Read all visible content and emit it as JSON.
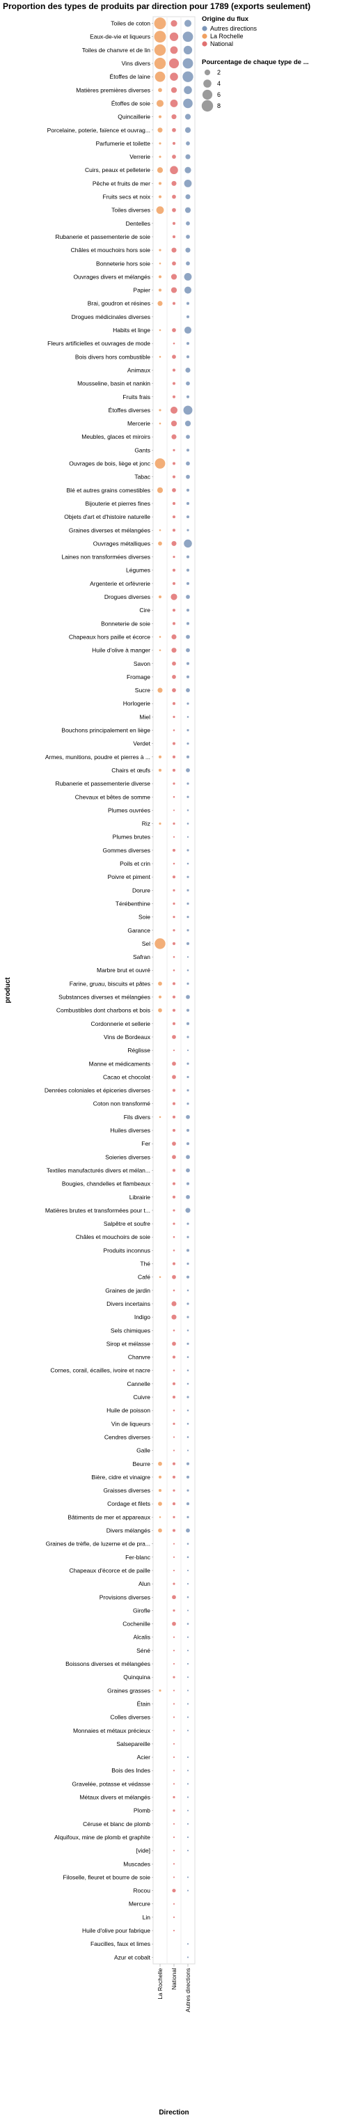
{
  "chart_data": {
    "type": "scatter",
    "title": "Proportion des types de produits par direction pour 1789 (exports seulement)",
    "xlabel": "Direction",
    "ylabel": "product",
    "directions": [
      "La Rochelle",
      "National",
      "Autres directions"
    ],
    "legend_color_title": "Origine du flux",
    "legend_color_entries": [
      {
        "label": "Autres directions",
        "color": "#7b95b8"
      },
      {
        "label": "La Rochelle",
        "color": "#f0a060"
      },
      {
        "label": "National",
        "color": "#e07070"
      }
    ],
    "legend_size_title": "Pourcentage de chaque type de ...",
    "legend_size_values": [
      2,
      4,
      6,
      8
    ],
    "products": [
      {
        "name": "Toiles de coton",
        "values": [
          8.5,
          2.5,
          3.0
        ]
      },
      {
        "name": "Eaux-de-vie et liqueurs",
        "values": [
          8.5,
          4.5,
          6.5
        ]
      },
      {
        "name": "Toiles de chanvre et de lin",
        "values": [
          8.0,
          3.5,
          4.5
        ]
      },
      {
        "name": "Vins divers",
        "values": [
          8.0,
          6.0,
          6.5
        ]
      },
      {
        "name": "Étoffes de laine",
        "values": [
          6.5,
          4.0,
          7.0
        ]
      },
      {
        "name": "Matières premières diverses",
        "values": [
          1.0,
          2.0,
          4.0
        ]
      },
      {
        "name": "Étoffes de soie",
        "values": [
          3.0,
          3.5,
          5.5
        ]
      },
      {
        "name": "Quincaillerie",
        "values": [
          0.5,
          1.5,
          2.0
        ]
      },
      {
        "name": "Porcelaine, poterie, faïence et ouvrag...",
        "values": [
          1.5,
          1.0,
          2.0
        ]
      },
      {
        "name": "Parfumerie et toilette",
        "values": [
          0.3,
          0.5,
          1.0
        ]
      },
      {
        "name": "Verrerie",
        "values": [
          0.3,
          1.0,
          1.5
        ]
      },
      {
        "name": "Cuirs, peaux et pelleterie",
        "values": [
          2.0,
          4.0,
          2.5
        ]
      },
      {
        "name": "Pêche et fruits de mer",
        "values": [
          0.5,
          1.5,
          3.5
        ]
      },
      {
        "name": "Fruits secs et noix",
        "values": [
          0.5,
          1.0,
          1.5
        ]
      },
      {
        "name": "Toiles diverses",
        "values": [
          3.5,
          1.0,
          2.0
        ]
      },
      {
        "name": "Dentelles",
        "values": [
          0.0,
          0.5,
          1.0
        ]
      },
      {
        "name": "Rubanerie et passementerie de soie",
        "values": [
          0.0,
          0.5,
          1.0
        ]
      },
      {
        "name": "Châles et mouchoirs hors soie",
        "values": [
          0.3,
          1.5,
          1.5
        ]
      },
      {
        "name": "Bonneterie hors soie",
        "values": [
          0.2,
          1.0,
          1.0
        ]
      },
      {
        "name": "Ouvrages divers et mélangés",
        "values": [
          0.5,
          2.0,
          3.5
        ]
      },
      {
        "name": "Papier",
        "values": [
          0.5,
          2.0,
          3.0
        ]
      },
      {
        "name": "Brai, goudron et résines",
        "values": [
          1.5,
          0.5,
          0.5
        ]
      },
      {
        "name": "Drogues médicinales diverses",
        "values": [
          0.0,
          0.0,
          0.5
        ]
      },
      {
        "name": "Habits et linge",
        "values": [
          0.2,
          1.0,
          3.0
        ]
      },
      {
        "name": "Fleurs artificielles et ouvrages de mode",
        "values": [
          0.0,
          0.2,
          0.5
        ]
      },
      {
        "name": "Bois divers hors combustible",
        "values": [
          0.2,
          1.0,
          0.5
        ]
      },
      {
        "name": "Animaux",
        "values": [
          0.0,
          0.5,
          1.5
        ]
      },
      {
        "name": "Mousseline, basin et nankin",
        "values": [
          0.0,
          0.5,
          1.0
        ]
      },
      {
        "name": "Fruits frais",
        "values": [
          0.0,
          0.5,
          0.5
        ]
      },
      {
        "name": "Étoffes diverses",
        "values": [
          0.3,
          3.0,
          5.0
        ]
      },
      {
        "name": "Mercerie",
        "values": [
          0.2,
          2.0,
          2.0
        ]
      },
      {
        "name": "Meubles, glaces et miroirs",
        "values": [
          0.0,
          1.5,
          1.0
        ]
      },
      {
        "name": "Gants",
        "values": [
          0.0,
          0.3,
          0.5
        ]
      },
      {
        "name": "Ouvrages de bois, liège et jonc",
        "values": [
          6.5,
          0.5,
          1.0
        ]
      },
      {
        "name": "Tabac",
        "values": [
          0.0,
          0.5,
          1.0
        ]
      },
      {
        "name": "Blé et autres grains comestibles",
        "values": [
          2.0,
          1.0,
          0.5
        ]
      },
      {
        "name": "Bijouterie et pierres fines",
        "values": [
          0.0,
          0.5,
          0.5
        ]
      },
      {
        "name": "Objets d'art et d'histoire naturelle",
        "values": [
          0.0,
          0.5,
          0.5
        ]
      },
      {
        "name": "Graines diverses et mélangées",
        "values": [
          0.2,
          0.5,
          0.3
        ]
      },
      {
        "name": "Ouvrages métalliques",
        "values": [
          1.0,
          1.5,
          4.0
        ]
      },
      {
        "name": "Laines non transformées diverses",
        "values": [
          0.0,
          0.3,
          0.5
        ]
      },
      {
        "name": "Légumes",
        "values": [
          0.0,
          0.5,
          0.5
        ]
      },
      {
        "name": "Argenterie et orfèvrerie",
        "values": [
          0.0,
          0.5,
          0.5
        ]
      },
      {
        "name": "Drogues diverses",
        "values": [
          0.5,
          2.5,
          1.0
        ]
      },
      {
        "name": "Cire",
        "values": [
          0.0,
          0.5,
          0.5
        ]
      },
      {
        "name": "Bonneterie de soie",
        "values": [
          0.0,
          0.5,
          0.5
        ]
      },
      {
        "name": "Chapeaux hors paille et écorce",
        "values": [
          0.2,
          1.5,
          1.0
        ]
      },
      {
        "name": "Huile d'olive à manger",
        "values": [
          0.2,
          1.5,
          1.0
        ]
      },
      {
        "name": "Savon",
        "values": [
          0.0,
          1.0,
          0.5
        ]
      },
      {
        "name": "Fromage",
        "values": [
          0.0,
          1.0,
          0.5
        ]
      },
      {
        "name": "Sucre",
        "values": [
          1.5,
          1.0,
          1.0
        ]
      },
      {
        "name": "Horlogerie",
        "values": [
          0.0,
          0.5,
          0.3
        ]
      },
      {
        "name": "Miel",
        "values": [
          0.0,
          0.3,
          0.2
        ]
      },
      {
        "name": "Bouchons principalement en liège",
        "values": [
          0.0,
          0.2,
          0.3
        ]
      },
      {
        "name": "Verdet",
        "values": [
          0.0,
          0.5,
          0.3
        ]
      },
      {
        "name": "Armes, munitions, poudre et pierres à ...",
        "values": [
          0.5,
          0.5,
          0.5
        ]
      },
      {
        "name": "Chairs et œufs",
        "values": [
          0.5,
          0.5,
          1.0
        ]
      },
      {
        "name": "Rubanerie et passementerie diverse",
        "values": [
          0.0,
          0.3,
          0.3
        ]
      },
      {
        "name": "Chevaux et bêtes de somme",
        "values": [
          0.0,
          0.2,
          0.3
        ]
      },
      {
        "name": "Plumes ouvrées",
        "values": [
          0.0,
          0.1,
          0.2
        ]
      },
      {
        "name": "Riz",
        "values": [
          0.3,
          0.3,
          0.2
        ]
      },
      {
        "name": "Plumes brutes",
        "values": [
          0.0,
          0.1,
          0.1
        ]
      },
      {
        "name": "Gommes diverses",
        "values": [
          0.0,
          0.5,
          0.3
        ]
      },
      {
        "name": "Poils et crin",
        "values": [
          0.0,
          0.2,
          0.2
        ]
      },
      {
        "name": "Poivre et piment",
        "values": [
          0.0,
          0.5,
          0.3
        ]
      },
      {
        "name": "Dorure",
        "values": [
          0.0,
          0.3,
          0.3
        ]
      },
      {
        "name": "Térébenthine",
        "values": [
          0.0,
          0.3,
          0.3
        ]
      },
      {
        "name": "Soie",
        "values": [
          0.0,
          0.3,
          0.3
        ]
      },
      {
        "name": "Garance",
        "values": [
          0.0,
          0.3,
          0.3
        ]
      },
      {
        "name": "Sel",
        "values": [
          7.0,
          0.5,
          0.5
        ]
      },
      {
        "name": "Safran",
        "values": [
          0.0,
          0.2,
          0.1
        ]
      },
      {
        "name": "Marbre brut et ouvré",
        "values": [
          0.0,
          0.2,
          0.2
        ]
      },
      {
        "name": "Farine, gruau, biscuits et pâtes",
        "values": [
          1.0,
          0.5,
          0.3
        ]
      },
      {
        "name": "Substances diverses et mélangées",
        "values": [
          0.5,
          0.5,
          1.0
        ]
      },
      {
        "name": "Combustibles dont charbons et bois",
        "values": [
          1.0,
          0.5,
          0.5
        ]
      },
      {
        "name": "Cordonnerie et sellerie",
        "values": [
          0.0,
          0.5,
          0.5
        ]
      },
      {
        "name": "Vins de Bordeaux",
        "values": [
          0.0,
          1.0,
          0.3
        ]
      },
      {
        "name": "Réglisse",
        "values": [
          0.0,
          0.1,
          0.1
        ]
      },
      {
        "name": "Manne et médicaments",
        "values": [
          0.0,
          1.0,
          0.3
        ]
      },
      {
        "name": "Cacao et chocolat",
        "values": [
          0.0,
          1.0,
          0.3
        ]
      },
      {
        "name": "Denrées coloniales et épiceries diverses",
        "values": [
          0.0,
          0.5,
          0.3
        ]
      },
      {
        "name": "Coton non transformé",
        "values": [
          0.0,
          0.5,
          0.3
        ]
      },
      {
        "name": "Fils divers",
        "values": [
          0.2,
          0.5,
          1.0
        ]
      },
      {
        "name": "Huiles diverses",
        "values": [
          0.0,
          0.5,
          0.5
        ]
      },
      {
        "name": "Fer",
        "values": [
          0.0,
          1.0,
          0.5
        ]
      },
      {
        "name": "Soieries diverses",
        "values": [
          0.0,
          1.0,
          1.0
        ]
      },
      {
        "name": "Textiles manufacturés divers et mélan...",
        "values": [
          0.0,
          0.5,
          1.0
        ]
      },
      {
        "name": "Bougies, chandelles et flambeaux",
        "values": [
          0.0,
          0.5,
          0.5
        ]
      },
      {
        "name": "Librairie",
        "values": [
          0.0,
          0.5,
          1.0
        ]
      },
      {
        "name": "Matières brutes et transformées pour t...",
        "values": [
          0.0,
          0.3,
          1.5
        ]
      },
      {
        "name": "Salpêtre et soufre",
        "values": [
          0.0,
          0.3,
          0.3
        ]
      },
      {
        "name": "Châles et mouchoirs de soie",
        "values": [
          0.0,
          0.2,
          0.3
        ]
      },
      {
        "name": "Produits inconnus",
        "values": [
          0.0,
          0.2,
          0.5
        ]
      },
      {
        "name": "Thé",
        "values": [
          0.0,
          0.5,
          0.3
        ]
      },
      {
        "name": "Café",
        "values": [
          0.2,
          1.0,
          0.5
        ]
      },
      {
        "name": "Graines de jardin",
        "values": [
          0.0,
          0.2,
          0.2
        ]
      },
      {
        "name": "Divers incertains",
        "values": [
          0.0,
          1.5,
          0.3
        ]
      },
      {
        "name": "Indigo",
        "values": [
          0.0,
          1.5,
          0.3
        ]
      },
      {
        "name": "Sels chimiques",
        "values": [
          0.0,
          0.2,
          0.2
        ]
      },
      {
        "name": "Sirop et mélasse",
        "values": [
          0.0,
          1.0,
          0.3
        ]
      },
      {
        "name": "Chanvre",
        "values": [
          0.0,
          0.5,
          0.2
        ]
      },
      {
        "name": "Cornes, corail, écailles, ivoire et nacre",
        "values": [
          0.0,
          0.2,
          0.2
        ]
      },
      {
        "name": "Cannelle",
        "values": [
          0.0,
          0.5,
          0.2
        ]
      },
      {
        "name": "Cuivre",
        "values": [
          0.0,
          0.5,
          0.3
        ]
      },
      {
        "name": "Huile de poisson",
        "values": [
          0.0,
          0.2,
          0.2
        ]
      },
      {
        "name": "Vin de liqueurs",
        "values": [
          0.0,
          0.3,
          0.2
        ]
      },
      {
        "name": "Cendres diverses",
        "values": [
          0.0,
          0.1,
          0.2
        ]
      },
      {
        "name": "Galle",
        "values": [
          0.0,
          0.1,
          0.1
        ]
      },
      {
        "name": "Beurre",
        "values": [
          1.0,
          0.5,
          0.5
        ]
      },
      {
        "name": "Bière, cidre et vinaigre",
        "values": [
          0.5,
          0.5,
          0.5
        ]
      },
      {
        "name": "Graisses diverses",
        "values": [
          0.5,
          0.3,
          0.3
        ]
      },
      {
        "name": "Cordage et filets",
        "values": [
          1.0,
          0.5,
          0.5
        ]
      },
      {
        "name": "Bâtiments de mer et appareaux",
        "values": [
          0.2,
          0.3,
          0.3
        ]
      },
      {
        "name": "Divers mélangés",
        "values": [
          1.0,
          0.5,
          1.0
        ]
      },
      {
        "name": "Graines de trèfle, de luzerne et de pra...",
        "values": [
          0.0,
          0.1,
          0.2
        ]
      },
      {
        "name": "Fer-blanc",
        "values": [
          0.0,
          0.1,
          0.2
        ]
      },
      {
        "name": "Chapeaux d'écorce et de paille",
        "values": [
          0.0,
          0.1,
          0.1
        ]
      },
      {
        "name": "Alun",
        "values": [
          0.0,
          0.3,
          0.1
        ]
      },
      {
        "name": "Provisions diverses",
        "values": [
          0.0,
          1.0,
          0.2
        ]
      },
      {
        "name": "Girofle",
        "values": [
          0.0,
          0.3,
          0.1
        ]
      },
      {
        "name": "Cochenille",
        "values": [
          0.0,
          1.0,
          0.2
        ]
      },
      {
        "name": "Alcalis",
        "values": [
          0.0,
          0.1,
          0.1
        ]
      },
      {
        "name": "Séné",
        "values": [
          0.0,
          0.1,
          0.1
        ]
      },
      {
        "name": "Boissons diverses et mélangées",
        "values": [
          0.0,
          0.1,
          0.1
        ]
      },
      {
        "name": "Quinquina",
        "values": [
          0.0,
          0.3,
          0.1
        ]
      },
      {
        "name": "Graines grasses",
        "values": [
          0.3,
          0.1,
          0.1
        ]
      },
      {
        "name": "Étain",
        "values": [
          0.0,
          0.1,
          0.1
        ]
      },
      {
        "name": "Colles diverses",
        "values": [
          0.0,
          0.1,
          0.1
        ]
      },
      {
        "name": "Monnaies et métaux précieux",
        "values": [
          0.0,
          0.1,
          0.1
        ]
      },
      {
        "name": "Salsepareille",
        "values": [
          0.0,
          0.1,
          0.0
        ]
      },
      {
        "name": "Acier",
        "values": [
          0.0,
          0.1,
          0.1
        ]
      },
      {
        "name": "Bois des Indes",
        "values": [
          0.0,
          0.1,
          0.1
        ]
      },
      {
        "name": "Gravelée, potasse et védasse",
        "values": [
          0.0,
          0.1,
          0.1
        ]
      },
      {
        "name": "Métaux divers et mélangés",
        "values": [
          0.0,
          0.3,
          0.1
        ]
      },
      {
        "name": "Plomb",
        "values": [
          0.0,
          0.3,
          0.1
        ]
      },
      {
        "name": "Céruse et blanc de plomb",
        "values": [
          0.0,
          0.1,
          0.1
        ]
      },
      {
        "name": "Alquifoux, mine de plomb et graphite",
        "values": [
          0.0,
          0.1,
          0.1
        ]
      },
      {
        "name": "[vide]",
        "values": [
          0.0,
          0.1,
          0.1
        ]
      },
      {
        "name": "Muscades",
        "values": [
          0.0,
          0.1,
          0.0
        ]
      },
      {
        "name": "Filoselle, fleuret et bourre de soie",
        "values": [
          0.0,
          0.1,
          0.1
        ]
      },
      {
        "name": "Rocou",
        "values": [
          0.0,
          0.8,
          0.1
        ]
      },
      {
        "name": "Mercure",
        "values": [
          0.0,
          0.1,
          0.0
        ]
      },
      {
        "name": "Lin",
        "values": [
          0.0,
          0.1,
          0.0
        ]
      },
      {
        "name": "Huile d'olive pour fabrique",
        "values": [
          0.0,
          0.1,
          0.0
        ]
      },
      {
        "name": "Faucilles, faux et limes",
        "values": [
          0.0,
          0.0,
          0.1
        ]
      },
      {
        "name": "Azur et cobalt",
        "values": [
          0.0,
          0.0,
          0.1
        ]
      }
    ]
  }
}
